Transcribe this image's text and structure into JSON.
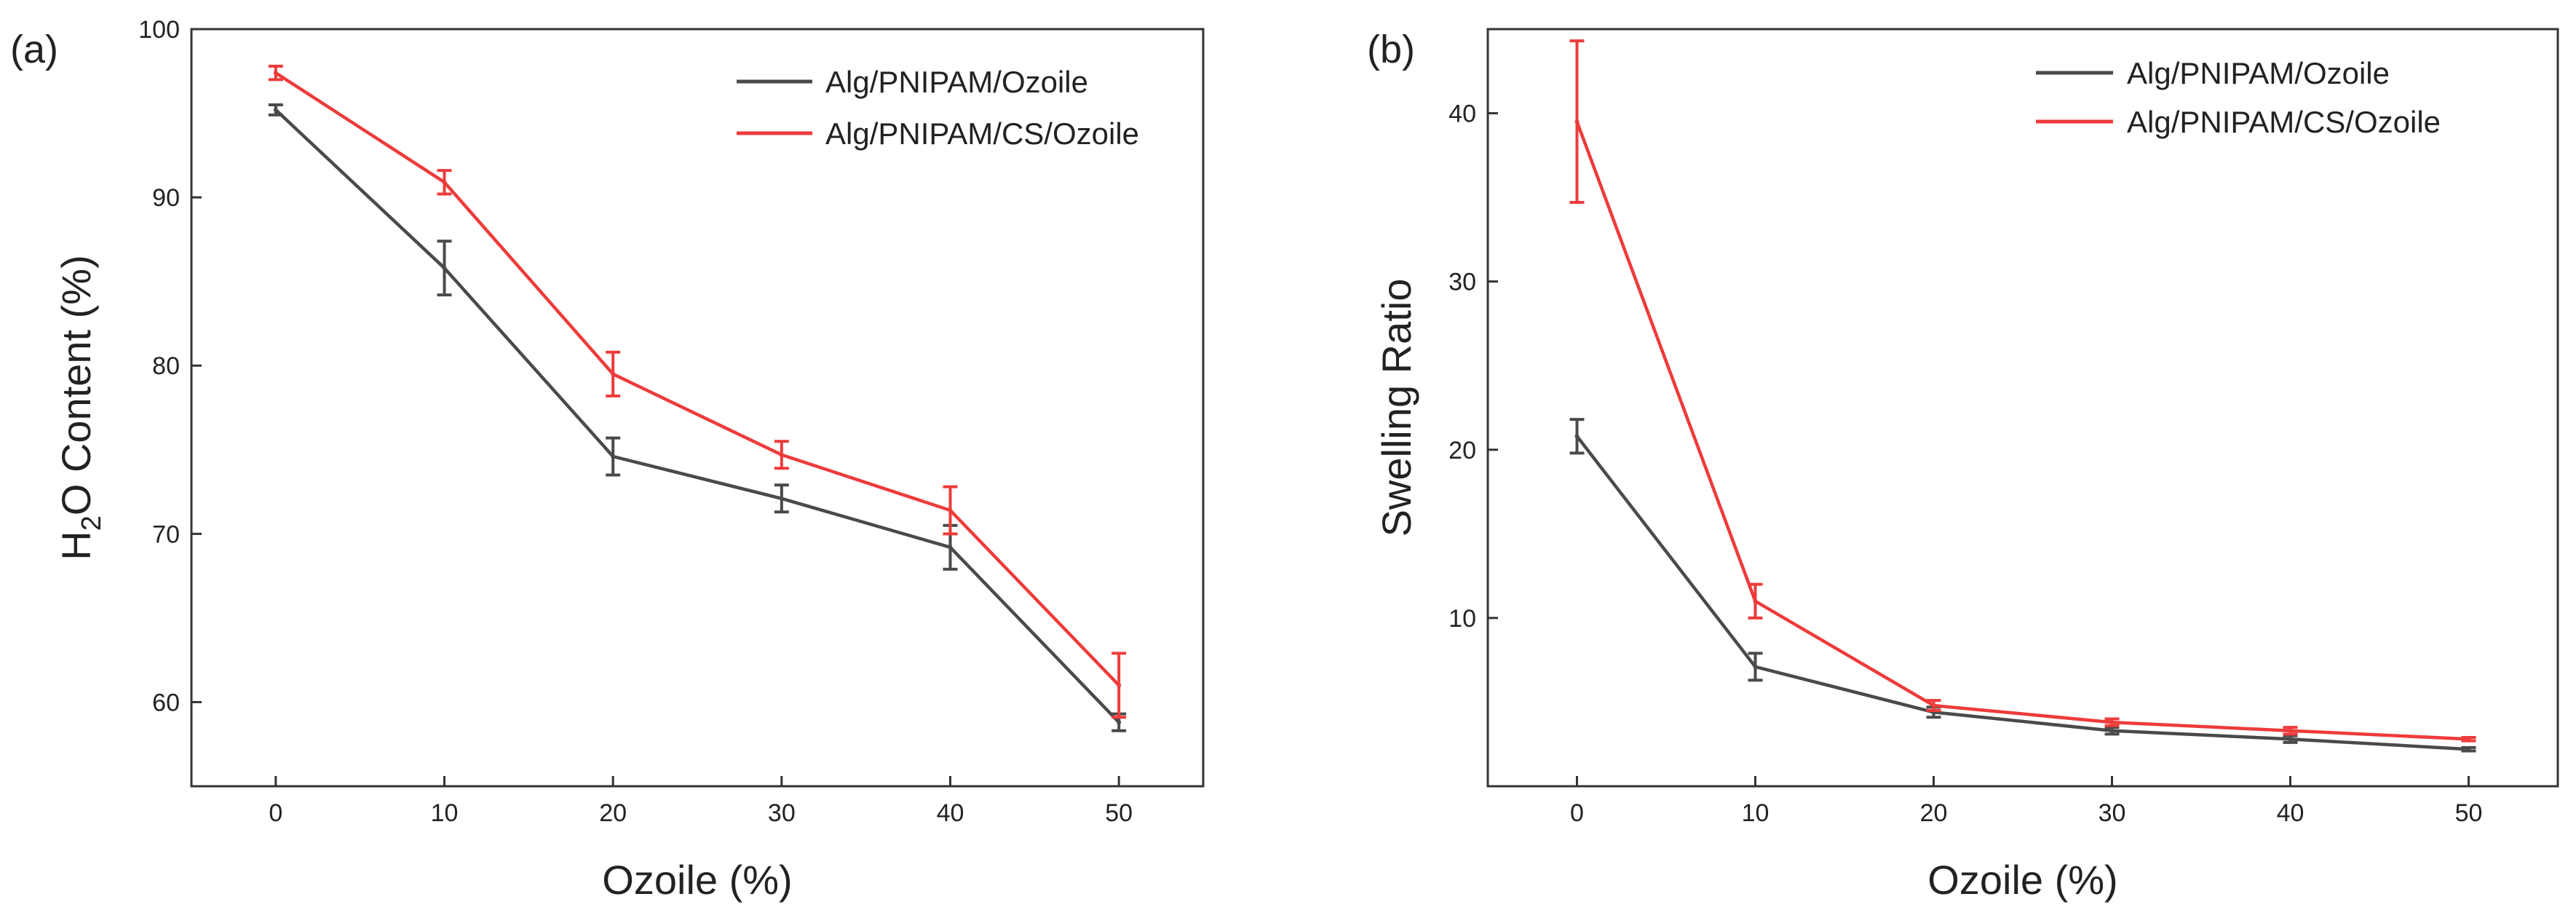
{
  "chart_data": [
    {
      "panel": "(a)",
      "type": "line",
      "xlabel": "Ozoile (%)",
      "ylabel_main": "H",
      "ylabel_sub": "2",
      "ylabel_rest": "O Content (%)",
      "x": [
        0,
        10,
        20,
        30,
        40,
        50
      ],
      "xlim": [
        -5,
        55
      ],
      "ylim": [
        55,
        100
      ],
      "xticks": [
        0,
        10,
        20,
        30,
        40,
        50
      ],
      "yticks": [
        60,
        70,
        80,
        90,
        100
      ],
      "legend_position": "top-right",
      "series": [
        {
          "name": "Alg/PNIPAM/Ozoile",
          "color": "#4a4a4a",
          "values": [
            95.2,
            85.8,
            74.6,
            72.1,
            69.2,
            58.8
          ],
          "errors": [
            0.3,
            1.6,
            1.1,
            0.8,
            1.3,
            0.5
          ]
        },
        {
          "name": "Alg/PNIPAM/CS/Ozoile",
          "color": "#ee3b3b",
          "values": [
            97.4,
            90.9,
            79.5,
            74.7,
            71.4,
            61.0
          ],
          "errors": [
            0.4,
            0.7,
            1.3,
            0.8,
            1.4,
            1.9
          ]
        }
      ]
    },
    {
      "panel": "(b)",
      "type": "line",
      "xlabel": "Ozoile (%)",
      "ylabel": "Swelling Ratio",
      "x": [
        0,
        10,
        20,
        30,
        40,
        50
      ],
      "xlim": [
        -5,
        55
      ],
      "ylim": [
        0,
        45
      ],
      "xticks": [
        0,
        10,
        20,
        30,
        40,
        50
      ],
      "yticks": [
        10,
        20,
        30,
        40
      ],
      "legend_position": "top-right",
      "series": [
        {
          "name": "Alg/PNIPAM/Ozoile",
          "color": "#4a4a4a",
          "values": [
            20.8,
            7.1,
            4.4,
            3.3,
            2.8,
            2.2
          ],
          "errors": [
            1.0,
            0.8,
            0.3,
            0.2,
            0.2,
            0.1
          ]
        },
        {
          "name": "Alg/PNIPAM/CS/Ozoile",
          "color": "#ee3b3b",
          "values": [
            39.5,
            11.0,
            4.8,
            3.8,
            3.3,
            2.8
          ],
          "errors": [
            4.8,
            1.0,
            0.3,
            0.2,
            0.2,
            0.1
          ]
        }
      ]
    }
  ]
}
